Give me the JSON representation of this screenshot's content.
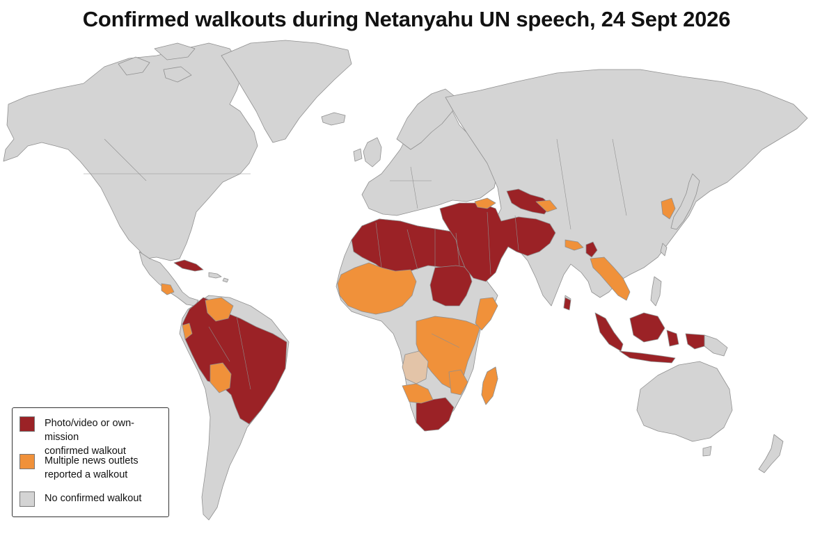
{
  "title": "Confirmed walkouts during Netanyahu UN speech, 24 Sept 2026",
  "colors": {
    "confirmed": "#9b2226",
    "reported": "#f0913a",
    "none": "#d4d4d4",
    "other": "#e3c4a8",
    "ocean": "#ffffff",
    "border": "#8f8f8f"
  },
  "legend": {
    "items": [
      {
        "label": "Photo/video or own-mission\nconfirmed walkout",
        "color": "#9b2226"
      },
      {
        "label": "Multiple news outlets\nreported a walkout",
        "color": "#f0913a"
      },
      {
        "label": "No confirmed walkout",
        "color": "#d4d4d4"
      }
    ]
  }
}
